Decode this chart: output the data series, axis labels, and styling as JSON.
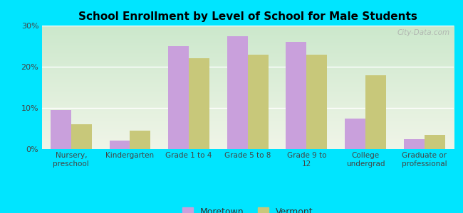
{
  "title": "School Enrollment by Level of School for Male Students",
  "categories": [
    "Nursery,\npreschool",
    "Kindergarten",
    "Grade 1 to 4",
    "Grade 5 to 8",
    "Grade 9 to\n12",
    "College\nundergrad",
    "Graduate or\nprofessional"
  ],
  "moretown": [
    9.5,
    2.0,
    25.0,
    27.5,
    26.0,
    7.5,
    2.5
  ],
  "vermont": [
    6.0,
    4.5,
    22.0,
    23.0,
    23.0,
    18.0,
    3.5
  ],
  "moretown_color": "#c9a0dc",
  "vermont_color": "#c8c87a",
  "background_color": "#00e5ff",
  "ylim": [
    0,
    30
  ],
  "yticks": [
    0,
    10,
    20,
    30
  ],
  "ytick_labels": [
    "0%",
    "10%",
    "20%",
    "30%"
  ],
  "bar_width": 0.35,
  "legend_labels": [
    "Moretown",
    "Vermont"
  ],
  "watermark": "City-Data.com",
  "grad_top": "#cce8cc",
  "grad_bottom": "#f0f5e8"
}
